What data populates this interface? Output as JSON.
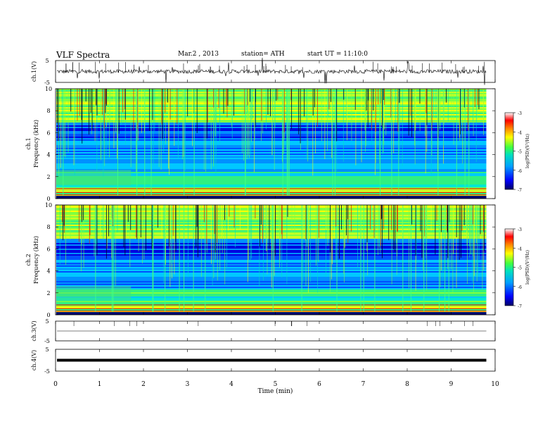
{
  "header": {
    "title": "VLF Spectra",
    "date": "Mar.2 , 2013",
    "station": "station= ATH",
    "start_ut": "start UT =  11:10:0"
  },
  "chart_data": [
    {
      "type": "line",
      "name": "ch1-waveform",
      "ylabel": "ch.1(V)",
      "yticks": [
        "5",
        "-5"
      ],
      "ylim": [
        -5,
        5
      ],
      "baseline": 0,
      "note_values": "noise waveform centered near 0 V with spikes"
    },
    {
      "type": "heatmap",
      "name": "ch1-spectrogram",
      "ylabel_top": "ch.1",
      "ylabel": "Frequency (kHz)",
      "yticks": [
        "0",
        "2",
        "4",
        "6",
        "8",
        "10"
      ],
      "ylim": [
        0,
        10
      ],
      "colorbar": {
        "label": "log(PSD)(V²/Hz)",
        "ticks": [
          "-3",
          "-4",
          "-5",
          "-6",
          "-7"
        ],
        "range": [
          -7,
          -3
        ],
        "colors": [
          "#000066",
          "#0000ff",
          "#00a0ff",
          "#00e0c0",
          "#40ff40",
          "#ffff00",
          "#ff8000",
          "#ff0000",
          "#ffffff"
        ]
      }
    },
    {
      "type": "heatmap",
      "name": "ch2-spectrogram",
      "ylabel_top": "ch.2",
      "ylabel": "Frequency (kHz)",
      "yticks": [
        "0",
        "2",
        "4",
        "6",
        "8",
        "10"
      ],
      "ylim": [
        0,
        10
      ],
      "colorbar": {
        "label": "log(PSD)(V²/Hz)",
        "ticks": [
          "-3",
          "-4",
          "-5",
          "-6",
          "-7"
        ],
        "range": [
          -7,
          -3
        ]
      }
    },
    {
      "type": "line",
      "name": "ch3-waveform",
      "ylabel": "ch.3(V)",
      "yticks": [
        "5",
        "-5"
      ],
      "ylim": [
        -5,
        5
      ],
      "baseline": 0
    },
    {
      "type": "line",
      "name": "ch4-waveform",
      "ylabel": "ch.4(V)",
      "yticks": [
        "5",
        "-5"
      ],
      "ylim": [
        -5,
        5
      ],
      "baseline": 0
    }
  ],
  "xaxis": {
    "label": "Time (min)",
    "ticks": [
      "0",
      "1",
      "2",
      "3",
      "4",
      "5",
      "6",
      "7",
      "8",
      "9",
      "10"
    ],
    "range": [
      0,
      10
    ],
    "data_end": 9.8
  }
}
